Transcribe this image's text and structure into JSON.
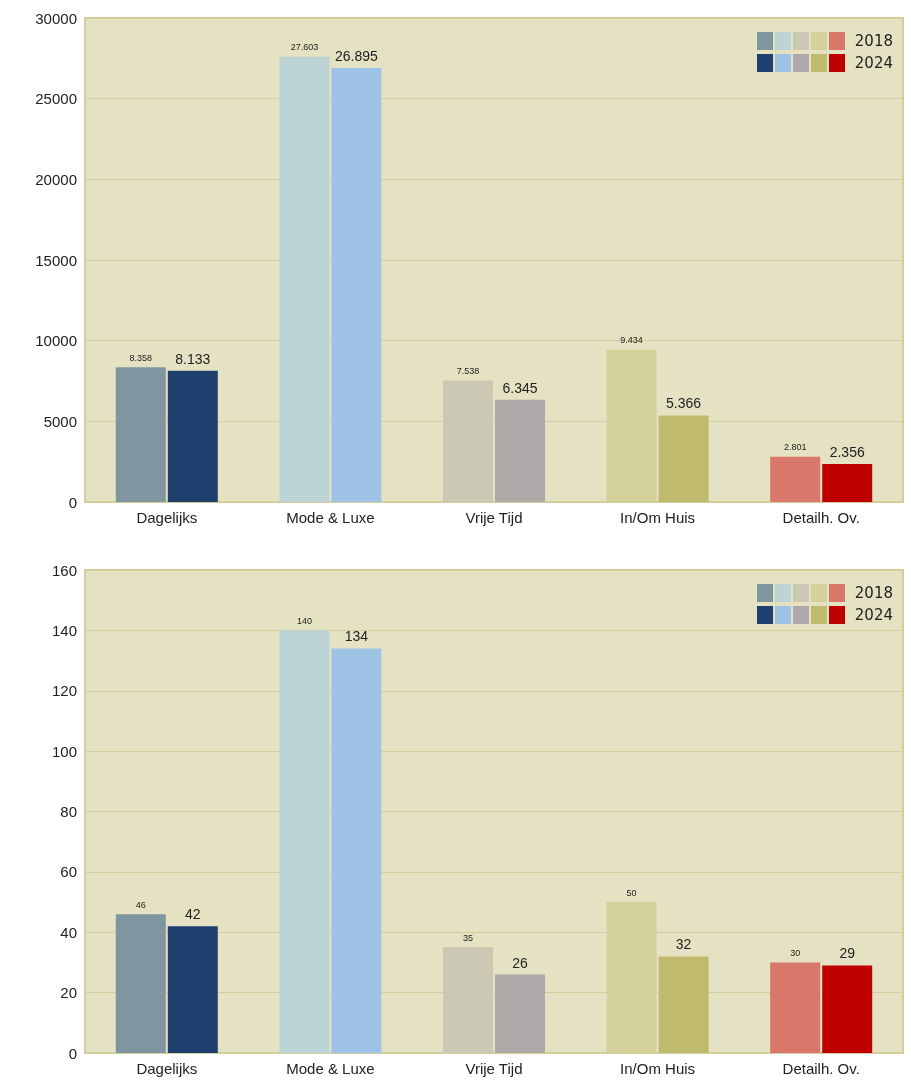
{
  "chart_data": [
    {
      "type": "bar",
      "categories": [
        "Dagelijks",
        "Mode & Luxe",
        "Vrije Tijd",
        "In/Om Huis",
        "Detailh. Ov."
      ],
      "series": [
        {
          "name": "2018",
          "colors": [
            "#7f96a0",
            "#bcd4d6",
            "#cbc8b4",
            "#d3d09a",
            "#d9786a"
          ],
          "values": [
            8358,
            27603,
            7538,
            9434,
            2801
          ],
          "value_labels": [
            "8.358",
            "27.603",
            "7.538",
            "9.434",
            "2.801"
          ]
        },
        {
          "name": "2024",
          "colors": [
            "#1f3f6e",
            "#9fc3e6",
            "#ada9a8",
            "#c0bb6c",
            "#c00000"
          ],
          "values": [
            8133,
            26895,
            6345,
            5366,
            2356
          ],
          "value_labels": [
            "8.133",
            "26.895",
            "6.345",
            "5.366",
            "2.356"
          ]
        }
      ],
      "ylim": [
        0,
        30000
      ],
      "yticks": [
        0,
        5000,
        10000,
        15000,
        20000,
        25000,
        30000
      ],
      "grid": "y",
      "legend": "top right"
    },
    {
      "type": "bar",
      "categories": [
        "Dagelijks",
        "Mode & Luxe",
        "Vrije Tijd",
        "In/Om Huis",
        "Detailh. Ov."
      ],
      "series": [
        {
          "name": "2018",
          "colors": [
            "#7f96a0",
            "#bcd4d6",
            "#cbc8b4",
            "#d3d09a",
            "#d9786a"
          ],
          "values": [
            46,
            140,
            35,
            50,
            30
          ],
          "value_labels": [
            "46",
            "140",
            "35",
            "50",
            "30"
          ]
        },
        {
          "name": "2024",
          "colors": [
            "#1f3f6e",
            "#9fc3e6",
            "#ada9a8",
            "#c0bb6c",
            "#c00000"
          ],
          "values": [
            42,
            134,
            26,
            32,
            29
          ],
          "value_labels": [
            "42",
            "134",
            "26",
            "32",
            "29"
          ]
        }
      ],
      "ylim": [
        0,
        160
      ],
      "yticks": [
        0,
        20,
        40,
        60,
        80,
        100,
        120,
        140,
        160
      ],
      "grid": "y",
      "legend": "top right"
    }
  ]
}
